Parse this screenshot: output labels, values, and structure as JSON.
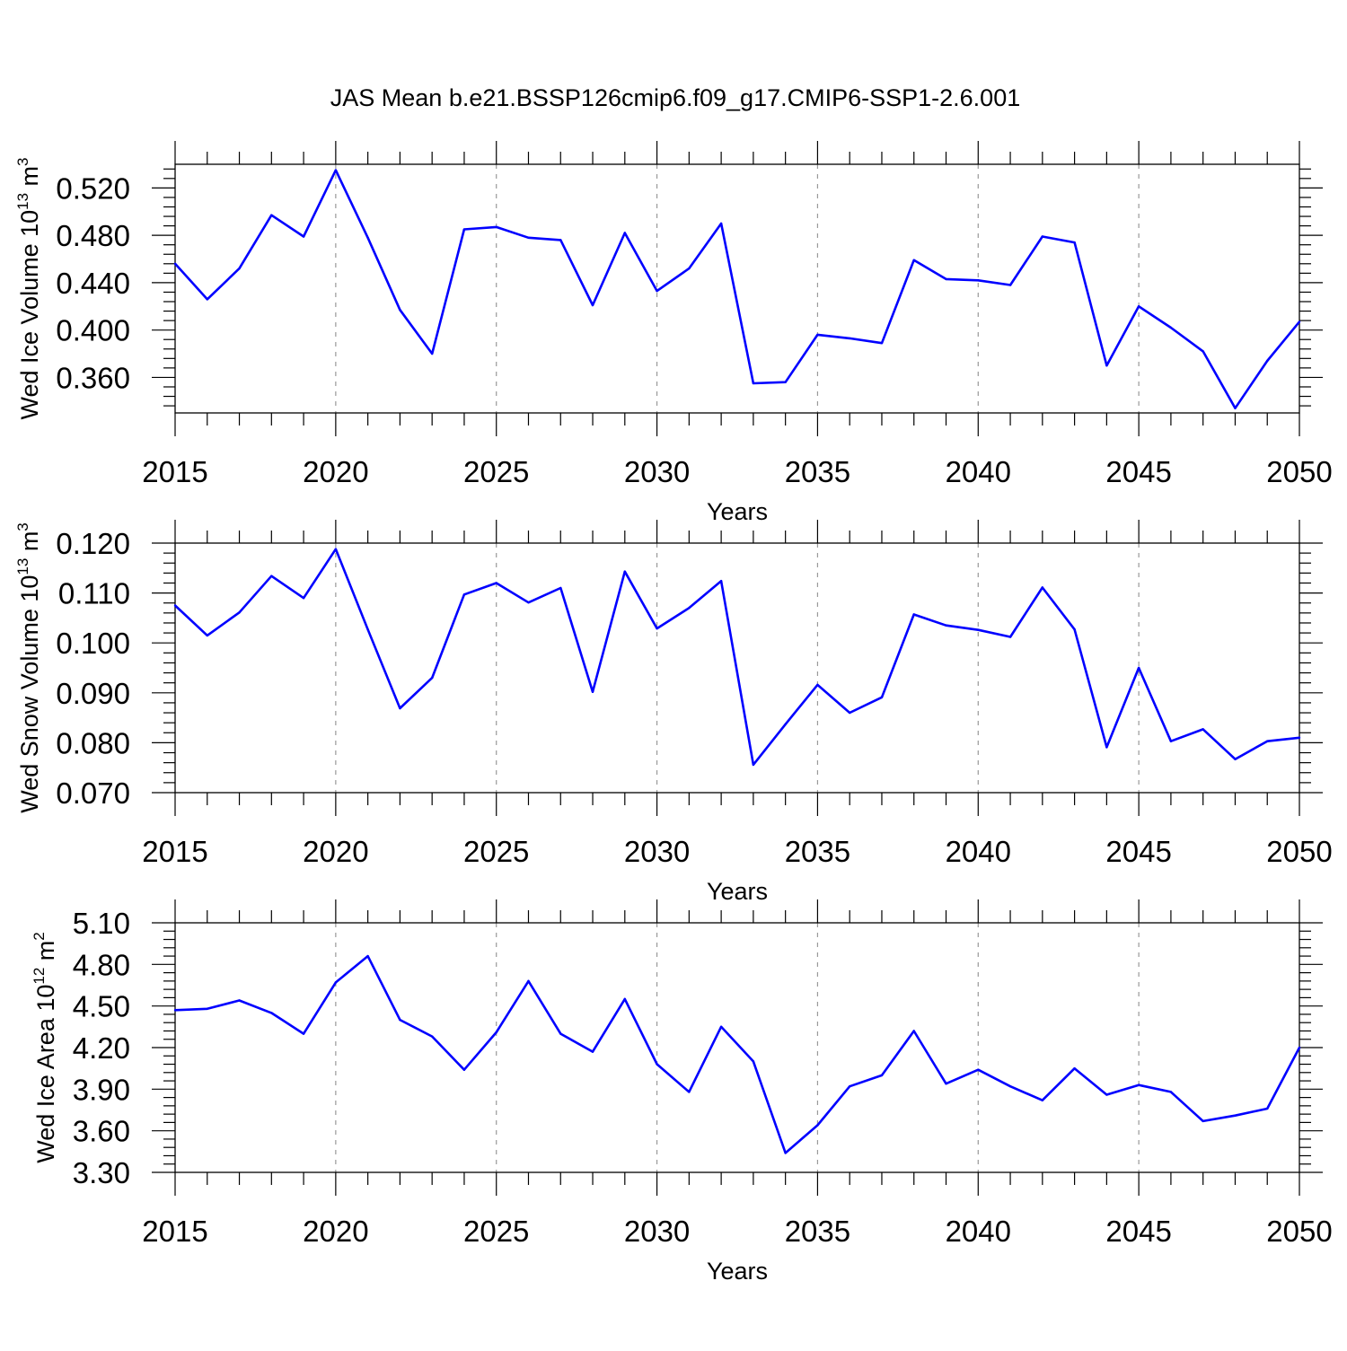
{
  "title": "JAS Mean b.e21.BSSP126cmip6.f09_g17.CMIP6-SSP1-2.6.001",
  "line_color": "#0000ff",
  "grid_color": "#999999",
  "chart_data": [
    {
      "type": "line",
      "xlabel": "Years",
      "ylabel_main": "Wed Ice Volume 10",
      "ylabel_exp": "13",
      "ylabel_unit": " m",
      "ylabel_unit_exp": "3",
      "xlim": [
        2015,
        2050
      ],
      "ylim": [
        0.33,
        0.54
      ],
      "xticks": [
        "2015",
        "2020",
        "2025",
        "2030",
        "2035",
        "2040",
        "2045",
        "2050"
      ],
      "yticks": [
        "0.360",
        "0.400",
        "0.440",
        "0.480",
        "0.520"
      ],
      "grid": "vertical dashed at major x ticks",
      "x": [
        2015,
        2016,
        2017,
        2018,
        2019,
        2020,
        2021,
        2022,
        2023,
        2024,
        2025,
        2026,
        2027,
        2028,
        2029,
        2030,
        2031,
        2032,
        2033,
        2034,
        2035,
        2036,
        2037,
        2038,
        2039,
        2040,
        2041,
        2042,
        2043,
        2044,
        2045,
        2046,
        2047,
        2048,
        2049,
        2050
      ],
      "y": [
        0.456,
        0.426,
        0.452,
        0.497,
        0.479,
        0.535,
        0.478,
        0.417,
        0.38,
        0.485,
        0.487,
        0.478,
        0.476,
        0.421,
        0.482,
        0.433,
        0.452,
        0.49,
        0.355,
        0.356,
        0.396,
        0.393,
        0.389,
        0.459,
        0.443,
        0.442,
        0.438,
        0.479,
        0.474,
        0.37,
        0.42,
        0.402,
        0.382,
        0.334,
        0.374,
        0.407
      ]
    },
    {
      "type": "line",
      "xlabel": "Years",
      "ylabel_main": "Wed Snow Volume 10",
      "ylabel_exp": "13",
      "ylabel_unit": " m",
      "ylabel_unit_exp": "3",
      "xlim": [
        2015,
        2050
      ],
      "ylim": [
        0.07,
        0.12
      ],
      "xticks": [
        "2015",
        "2020",
        "2025",
        "2030",
        "2035",
        "2040",
        "2045",
        "2050"
      ],
      "yticks": [
        "0.070",
        "0.080",
        "0.090",
        "0.100",
        "0.110",
        "0.120"
      ],
      "grid": "vertical dashed at major x ticks",
      "x": [
        2015,
        2016,
        2017,
        2018,
        2019,
        2020,
        2021,
        2022,
        2023,
        2024,
        2025,
        2026,
        2027,
        2028,
        2029,
        2030,
        2031,
        2032,
        2033,
        2034,
        2035,
        2036,
        2037,
        2038,
        2039,
        2040,
        2041,
        2042,
        2043,
        2044,
        2045,
        2046,
        2047,
        2048,
        2049,
        2050
      ],
      "y": [
        0.1075,
        0.1015,
        0.1061,
        0.1134,
        0.109,
        0.1188,
        0.1027,
        0.0869,
        0.093,
        0.1097,
        0.112,
        0.1081,
        0.111,
        0.0902,
        0.1143,
        0.1029,
        0.107,
        0.1124,
        0.0756,
        0.0837,
        0.0916,
        0.086,
        0.0891,
        0.1057,
        0.1035,
        0.1026,
        0.1012,
        0.1111,
        0.1027,
        0.0791,
        0.095,
        0.0803,
        0.0827,
        0.0767,
        0.0803,
        0.081
      ]
    },
    {
      "type": "line",
      "xlabel": "Years",
      "ylabel_main": "Wed Ice Area 10",
      "ylabel_exp": "12",
      "ylabel_unit": " m",
      "ylabel_unit_exp": "2",
      "xlim": [
        2015,
        2050
      ],
      "ylim": [
        3.3,
        5.1
      ],
      "xticks": [
        "2015",
        "2020",
        "2025",
        "2030",
        "2035",
        "2040",
        "2045",
        "2050"
      ],
      "yticks": [
        "3.30",
        "3.60",
        "3.90",
        "4.20",
        "4.50",
        "4.80",
        "5.10"
      ],
      "grid": "vertical dashed at major x ticks",
      "x": [
        2015,
        2016,
        2017,
        2018,
        2019,
        2020,
        2021,
        2022,
        2023,
        2024,
        2025,
        2026,
        2027,
        2028,
        2029,
        2030,
        2031,
        2032,
        2033,
        2034,
        2035,
        2036,
        2037,
        2038,
        2039,
        2040,
        2041,
        2042,
        2043,
        2044,
        2045,
        2046,
        2047,
        2048,
        2049,
        2050
      ],
      "y": [
        4.47,
        4.48,
        4.54,
        4.45,
        4.3,
        4.67,
        4.86,
        4.4,
        4.28,
        4.04,
        4.31,
        4.68,
        4.3,
        4.17,
        4.55,
        4.08,
        3.88,
        4.35,
        4.1,
        3.44,
        3.64,
        3.92,
        4.0,
        4.32,
        3.94,
        4.04,
        3.92,
        3.82,
        4.05,
        3.86,
        3.93,
        3.88,
        3.67,
        3.71,
        3.76,
        4.2
      ]
    }
  ]
}
